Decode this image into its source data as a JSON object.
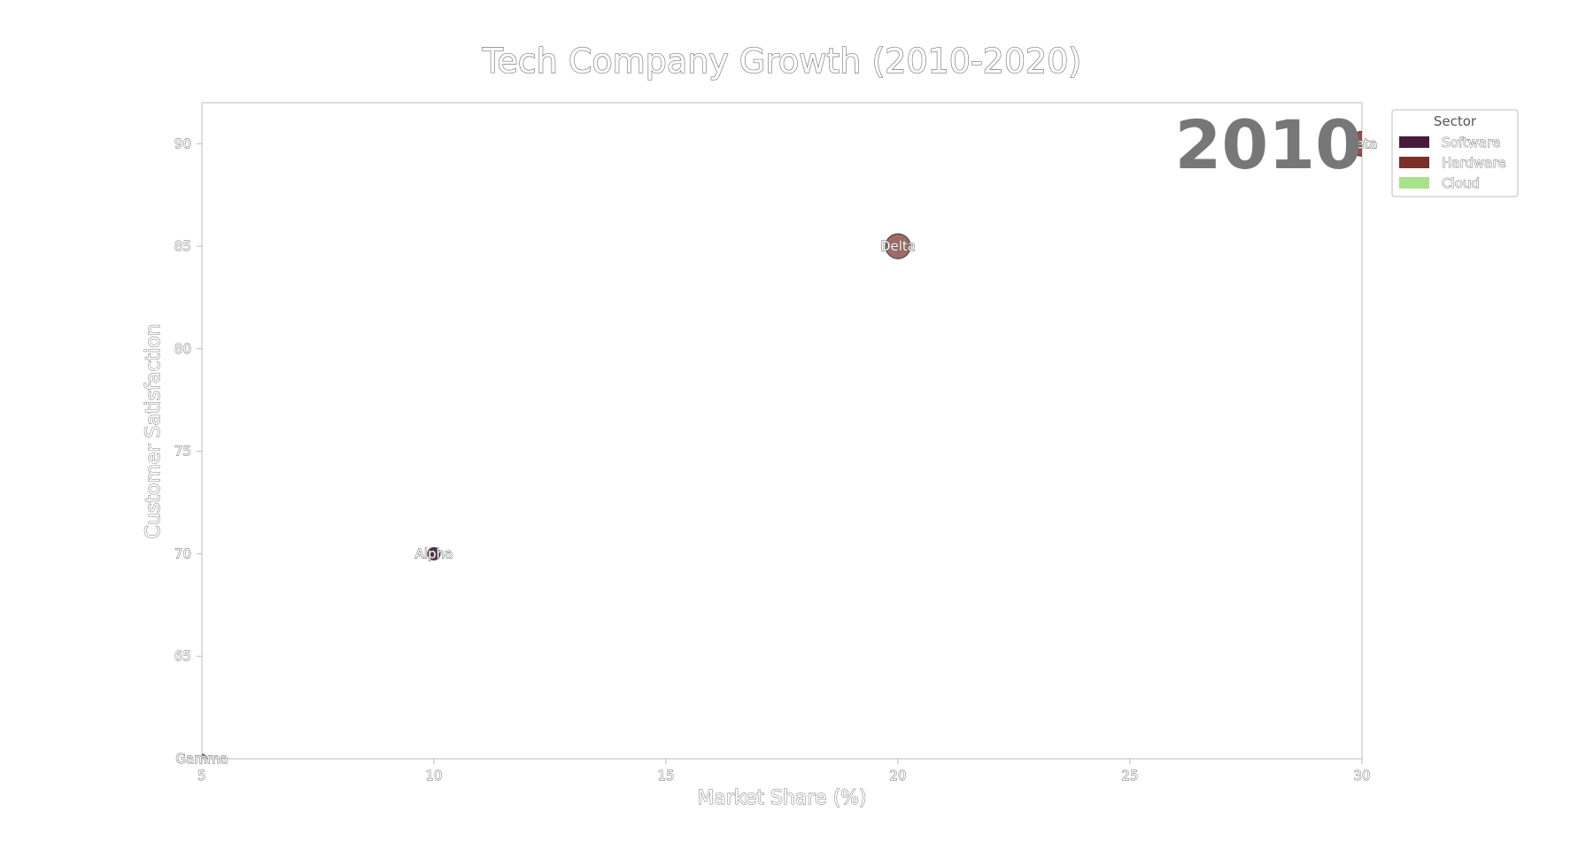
{
  "chart_data": {
    "type": "scatter",
    "title": "Tech Company Growth (2010-2020)",
    "xlabel": "Market Share (%)",
    "ylabel": "Customer Satisfaction",
    "xlim": [
      5,
      30
    ],
    "ylim": [
      60,
      92
    ],
    "xticks": [
      5,
      10,
      15,
      20,
      25,
      30
    ],
    "yticks": [
      65,
      70,
      75,
      80,
      85,
      90
    ],
    "year": "2010",
    "grid": false,
    "legend": {
      "title": "Sector",
      "placement": "outside-top-right",
      "entries": [
        {
          "name": "Software",
          "color": "#4a1a3c"
        },
        {
          "name": "Hardware",
          "color": "#7b2e2a"
        },
        {
          "name": "Cloud",
          "color": "#a8e38a"
        }
      ]
    },
    "points": [
      {
        "label": "Alpha",
        "x": 10,
        "y": 70,
        "sector": "Software",
        "size": 0.3,
        "color": "#4a1a3c"
      },
      {
        "label": "Delta",
        "x": 20,
        "y": 85,
        "sector": "Hardware",
        "size": 1.0,
        "color": "#9a5a55"
      },
      {
        "label": "Beta",
        "x": 30,
        "y": 90,
        "sector": "Hardware",
        "size": 1.0,
        "color": "#8a3a35"
      },
      {
        "label": "Gamma",
        "x": 5,
        "y": 60,
        "sector": "Cloud",
        "size": 0.1,
        "color": "#a8e38a"
      }
    ]
  }
}
